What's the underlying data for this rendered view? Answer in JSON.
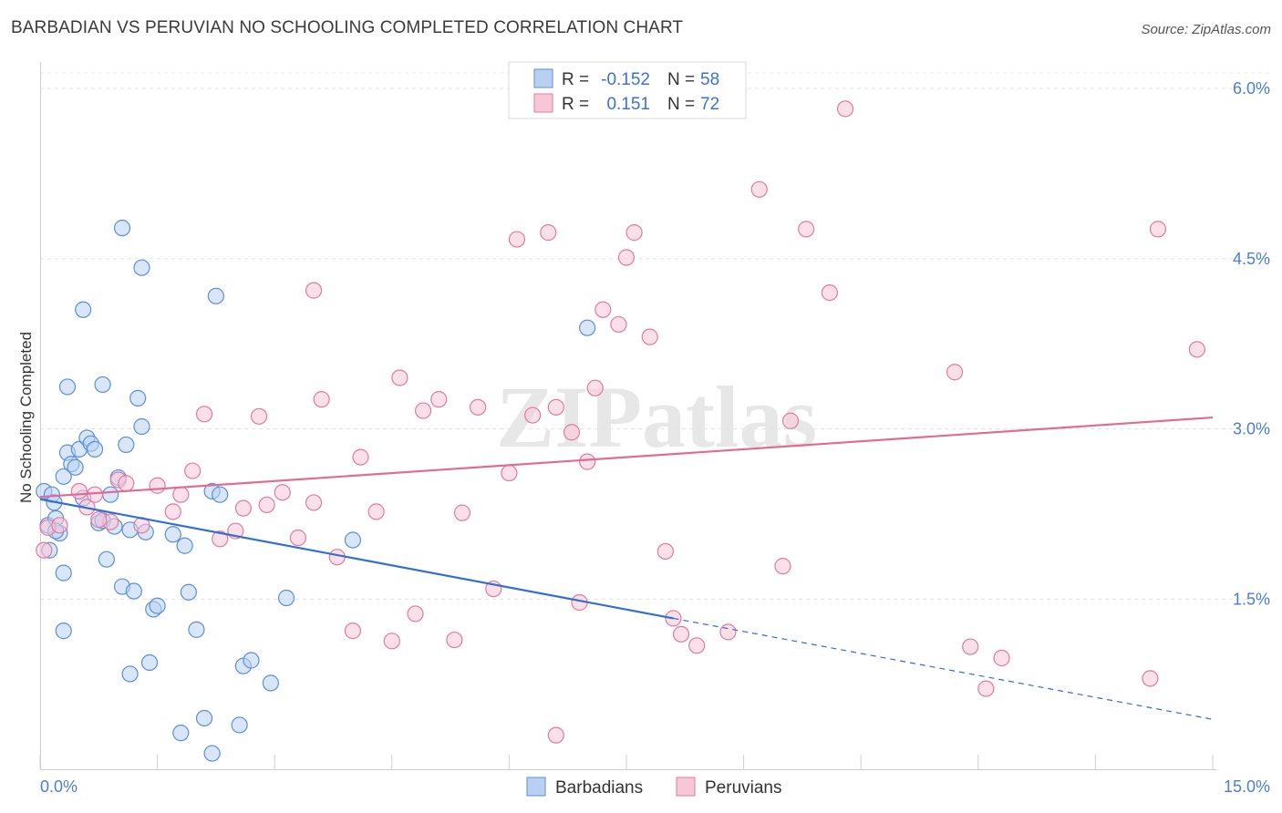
{
  "title": "BARBADIAN VS PERUVIAN NO SCHOOLING COMPLETED CORRELATION CHART",
  "source": "Source: ZipAtlas.com",
  "watermark": "ZIPatlas",
  "chart_data": {
    "type": "scatter",
    "xlabel": "",
    "ylabel": "No Schooling Completed",
    "xlim": [
      0,
      15
    ],
    "ylim": [
      0,
      6.2
    ],
    "x_tick_labels": [
      "0.0%",
      "15.0%"
    ],
    "y_ticks": [
      1.5,
      3.0,
      4.5,
      6.0
    ],
    "y_tick_labels": [
      "1.5%",
      "3.0%",
      "4.5%",
      "6.0%"
    ],
    "grid": true,
    "legend_top": {
      "rows": [
        {
          "r_label": "R =",
          "r_value": "-0.152",
          "n_label": "N =",
          "n_value": "58"
        },
        {
          "r_label": "R =",
          "r_value": "0.151",
          "n_label": "N =",
          "n_value": "72"
        }
      ]
    },
    "series": [
      {
        "name": "Barbadians",
        "color": "#5b8fd9",
        "fill": "#b8d1f3",
        "trend": {
          "x0": 0.0,
          "y0": 2.38,
          "x1": 8.1,
          "y1": 1.33,
          "dash_x1": 15.0,
          "dash_y1": 0.44
        },
        "points": [
          [
            0.05,
            2.45
          ],
          [
            0.1,
            2.15
          ],
          [
            0.12,
            1.93
          ],
          [
            0.15,
            2.42
          ],
          [
            0.18,
            2.35
          ],
          [
            0.2,
            2.21
          ],
          [
            0.25,
            2.08
          ],
          [
            0.3,
            2.58
          ],
          [
            0.35,
            2.79
          ],
          [
            0.4,
            2.69
          ],
          [
            0.45,
            2.66
          ],
          [
            0.5,
            2.82
          ],
          [
            0.55,
            2.39
          ],
          [
            0.6,
            2.92
          ],
          [
            0.65,
            2.87
          ],
          [
            0.7,
            2.82
          ],
          [
            0.75,
            2.17
          ],
          [
            0.8,
            2.19
          ],
          [
            0.85,
            1.85
          ],
          [
            0.9,
            2.42
          ],
          [
            0.95,
            2.14
          ],
          [
            1.0,
            2.57
          ],
          [
            1.05,
            1.61
          ],
          [
            1.1,
            2.86
          ],
          [
            1.15,
            2.11
          ],
          [
            1.2,
            1.57
          ],
          [
            1.25,
            3.27
          ],
          [
            1.3,
            3.02
          ],
          [
            1.35,
            2.09
          ],
          [
            1.4,
            0.94
          ],
          [
            1.45,
            1.41
          ],
          [
            1.5,
            1.44
          ],
          [
            1.7,
            2.07
          ],
          [
            1.8,
            0.32
          ],
          [
            1.85,
            1.97
          ],
          [
            1.9,
            1.56
          ],
          [
            2.0,
            1.23
          ],
          [
            2.1,
            0.45
          ],
          [
            2.2,
            2.45
          ],
          [
            2.25,
            4.17
          ],
          [
            2.3,
            2.42
          ],
          [
            2.55,
            0.39
          ],
          [
            2.6,
            0.91
          ],
          [
            2.7,
            0.96
          ],
          [
            2.95,
            0.76
          ],
          [
            3.15,
            1.51
          ],
          [
            4.0,
            2.02
          ],
          [
            0.35,
            3.37
          ],
          [
            0.55,
            4.05
          ],
          [
            1.05,
            4.77
          ],
          [
            1.3,
            4.42
          ],
          [
            0.8,
            3.39
          ],
          [
            7.0,
            3.89
          ],
          [
            0.3,
            1.73
          ],
          [
            0.3,
            1.22
          ],
          [
            1.15,
            0.84
          ],
          [
            2.2,
            0.14
          ],
          [
            0.2,
            2.1
          ]
        ]
      },
      {
        "name": "Peruvians",
        "color": "#e07ba0",
        "fill": "#f8c7d7",
        "trend": {
          "x0": 0.0,
          "y0": 2.4,
          "x1": 15.0,
          "y1": 3.1
        },
        "points": [
          [
            0.05,
            1.93
          ],
          [
            0.1,
            2.13
          ],
          [
            0.5,
            2.45
          ],
          [
            0.6,
            2.31
          ],
          [
            0.7,
            2.42
          ],
          [
            0.9,
            2.18
          ],
          [
            1.0,
            2.55
          ],
          [
            1.1,
            2.52
          ],
          [
            1.3,
            2.15
          ],
          [
            1.5,
            2.5
          ],
          [
            1.7,
            2.27
          ],
          [
            1.8,
            2.42
          ],
          [
            1.95,
            2.63
          ],
          [
            2.1,
            3.13
          ],
          [
            2.3,
            2.03
          ],
          [
            2.5,
            2.1
          ],
          [
            2.6,
            2.3
          ],
          [
            2.8,
            3.11
          ],
          [
            2.9,
            2.33
          ],
          [
            3.1,
            2.44
          ],
          [
            3.3,
            2.04
          ],
          [
            3.5,
            2.35
          ],
          [
            3.5,
            4.22
          ],
          [
            3.6,
            3.26
          ],
          [
            3.8,
            1.87
          ],
          [
            4.0,
            1.22
          ],
          [
            4.1,
            2.75
          ],
          [
            4.3,
            2.27
          ],
          [
            4.5,
            1.13
          ],
          [
            4.6,
            3.45
          ],
          [
            4.8,
            1.37
          ],
          [
            4.9,
            3.16
          ],
          [
            5.1,
            3.26
          ],
          [
            5.3,
            1.14
          ],
          [
            5.4,
            2.26
          ],
          [
            5.6,
            3.19
          ],
          [
            5.8,
            1.59
          ],
          [
            6.0,
            2.61
          ],
          [
            6.1,
            4.67
          ],
          [
            6.3,
            3.12
          ],
          [
            6.5,
            4.73
          ],
          [
            6.6,
            3.19
          ],
          [
            6.6,
            0.3
          ],
          [
            6.8,
            2.97
          ],
          [
            6.9,
            1.47
          ],
          [
            7.0,
            2.71
          ],
          [
            7.1,
            3.36
          ],
          [
            7.2,
            4.05
          ],
          [
            7.4,
            3.92
          ],
          [
            7.5,
            4.51
          ],
          [
            7.6,
            4.73
          ],
          [
            7.8,
            3.81
          ],
          [
            8.0,
            1.92
          ],
          [
            8.1,
            1.33
          ],
          [
            8.2,
            1.19
          ],
          [
            8.4,
            1.09
          ],
          [
            8.8,
            1.21
          ],
          [
            9.2,
            5.11
          ],
          [
            9.5,
            1.79
          ],
          [
            9.6,
            3.07
          ],
          [
            9.8,
            4.76
          ],
          [
            10.1,
            4.2
          ],
          [
            10.3,
            5.82
          ],
          [
            11.7,
            3.5
          ],
          [
            11.9,
            1.08
          ],
          [
            12.1,
            0.71
          ],
          [
            12.3,
            0.98
          ],
          [
            14.2,
            0.8
          ],
          [
            14.3,
            4.76
          ],
          [
            14.8,
            3.7
          ],
          [
            0.25,
            2.15
          ],
          [
            0.75,
            2.2
          ]
        ]
      }
    ]
  }
}
